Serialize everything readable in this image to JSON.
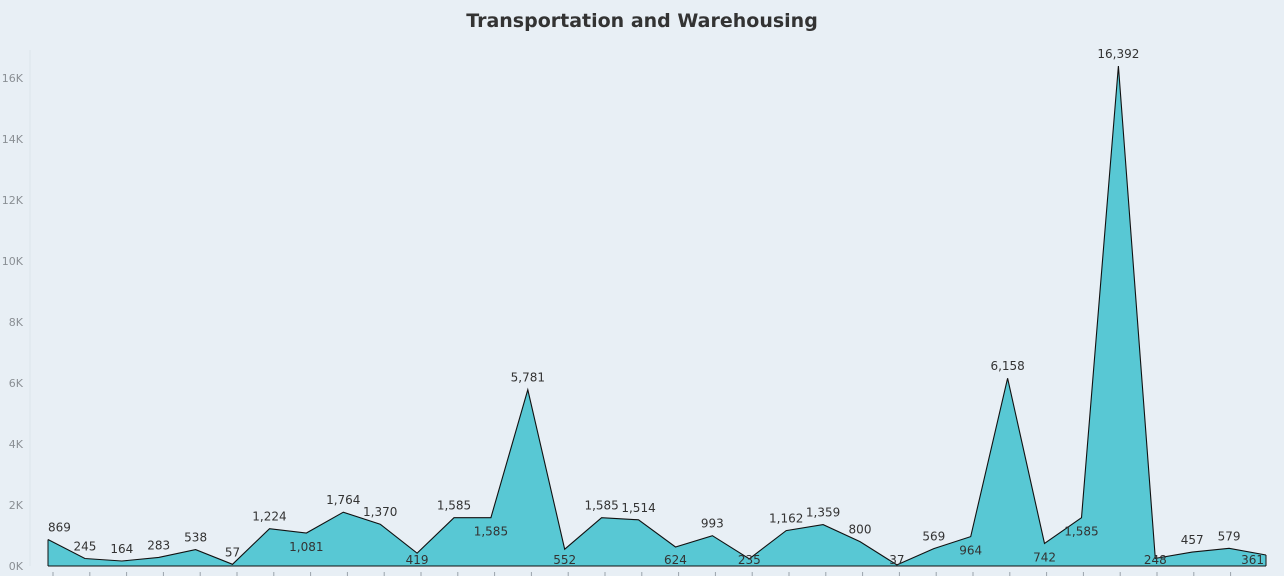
{
  "chart_data": {
    "type": "area",
    "title": "Transportation and Warehousing",
    "xlabel": "",
    "ylabel": "",
    "ylim": [
      0,
      17000
    ],
    "y_ticks": [
      0,
      2000,
      4000,
      6000,
      8000,
      10000,
      12000,
      14000,
      16000
    ],
    "y_tick_labels": [
      "0K",
      "2K",
      "4K",
      "6K",
      "8K",
      "10K",
      "12K",
      "14K",
      "16K"
    ],
    "grid": false,
    "fill_color": "#58c8d4",
    "line_color": "#111111",
    "values": [
      869,
      245,
      164,
      283,
      538,
      57,
      1224,
      1081,
      1764,
      1370,
      419,
      1585,
      1585,
      5781,
      552,
      1585,
      1514,
      624,
      993,
      235,
      1162,
      1359,
      800,
      37,
      569,
      964,
      6158,
      742,
      1585,
      16392,
      248,
      457,
      579,
      361
    ],
    "data_labels": [
      "869",
      "245",
      "164",
      "283",
      "538",
      "57",
      "1,224",
      "1,081",
      "1,764",
      "1,370",
      "419",
      "1,585",
      "1,585",
      "5,781",
      "552",
      "1,585",
      "1,514",
      "624",
      "993",
      "235",
      "1,162",
      "1,359",
      "800",
      "37",
      "569",
      "964",
      "6,158",
      "742",
      "1,585",
      "16,392",
      "248",
      "457",
      "579",
      "361"
    ],
    "data_label_position": [
      "above",
      "above",
      "above",
      "above",
      "above",
      "above",
      "above",
      "below",
      "above",
      "above",
      "below",
      "above",
      "below",
      "above",
      "below",
      "above",
      "above",
      "below",
      "above",
      "below",
      "above",
      "above",
      "above",
      "below",
      "above",
      "below",
      "above",
      "below",
      "below",
      "above",
      "below",
      "above",
      "above",
      "below"
    ]
  }
}
